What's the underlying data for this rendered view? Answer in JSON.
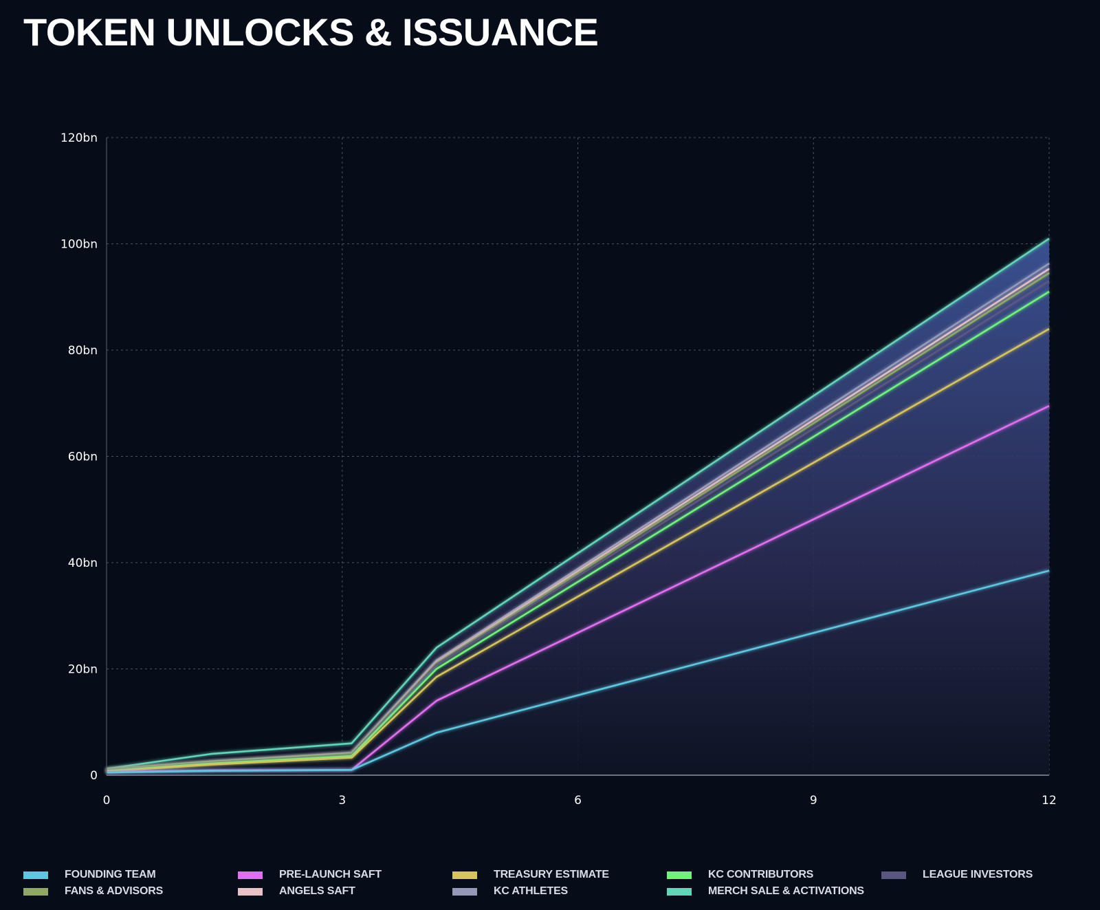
{
  "title": "TOKEN UNLOCKS & ISSUANCE",
  "chart_data": {
    "type": "area",
    "title": "TOKEN UNLOCKS & ISSUANCE",
    "xlabel": "",
    "ylabel": "",
    "xlim": [
      0,
      12
    ],
    "ylim": [
      0,
      120
    ],
    "x_ticks": [
      "0",
      "3",
      "6",
      "9",
      "12"
    ],
    "y_ticks": [
      "0",
      "20bn",
      "40bn",
      "60bn",
      "80bn",
      "100bn",
      "120bn"
    ],
    "grid": true,
    "legend_position": "bottom",
    "stacked": true,
    "x": [
      0,
      1.33,
      3.12,
      4.2,
      12
    ],
    "series": [
      {
        "name": "FOUNDING TEAM",
        "color": "#5bc8e0",
        "values": [
          0.5,
          0.8,
          1.0,
          8.0,
          38.5
        ]
      },
      {
        "name": "PRE-LAUNCH SAFT",
        "color": "#e26ef0",
        "values": [
          0.6,
          0.9,
          1.0,
          14.0,
          69.5
        ]
      },
      {
        "name": "TREASURY ESTIMATE",
        "color": "#d6c45a",
        "values": [
          0.7,
          2.0,
          3.3,
          18.5,
          84.0
        ]
      },
      {
        "name": "KC CONTRIBUTORS",
        "color": "#6ef27a",
        "values": [
          0.8,
          2.2,
          3.6,
          20.0,
          91.0
        ]
      },
      {
        "name": "LEAGUE INVESTORS",
        "color": "#5b5680",
        "values": [
          0.9,
          2.3,
          3.8,
          20.8,
          93.0
        ]
      },
      {
        "name": "FANS & ADVISORS",
        "color": "#8fa866",
        "values": [
          1.0,
          2.4,
          4.0,
          21.0,
          94.5
        ]
      },
      {
        "name": "ANGELS SAFT",
        "color": "#e8c2c6",
        "values": [
          1.0,
          2.5,
          4.1,
          21.3,
          95.3
        ]
      },
      {
        "name": "KC ATHLETES",
        "color": "#9499b8",
        "values": [
          1.1,
          2.6,
          4.2,
          21.6,
          96.3
        ]
      },
      {
        "name": "MERCH SALE & ACTIVATIONS",
        "color": "#5fd6b8",
        "values": [
          1.2,
          4.0,
          6.0,
          24.0,
          101.0
        ]
      }
    ]
  }
}
